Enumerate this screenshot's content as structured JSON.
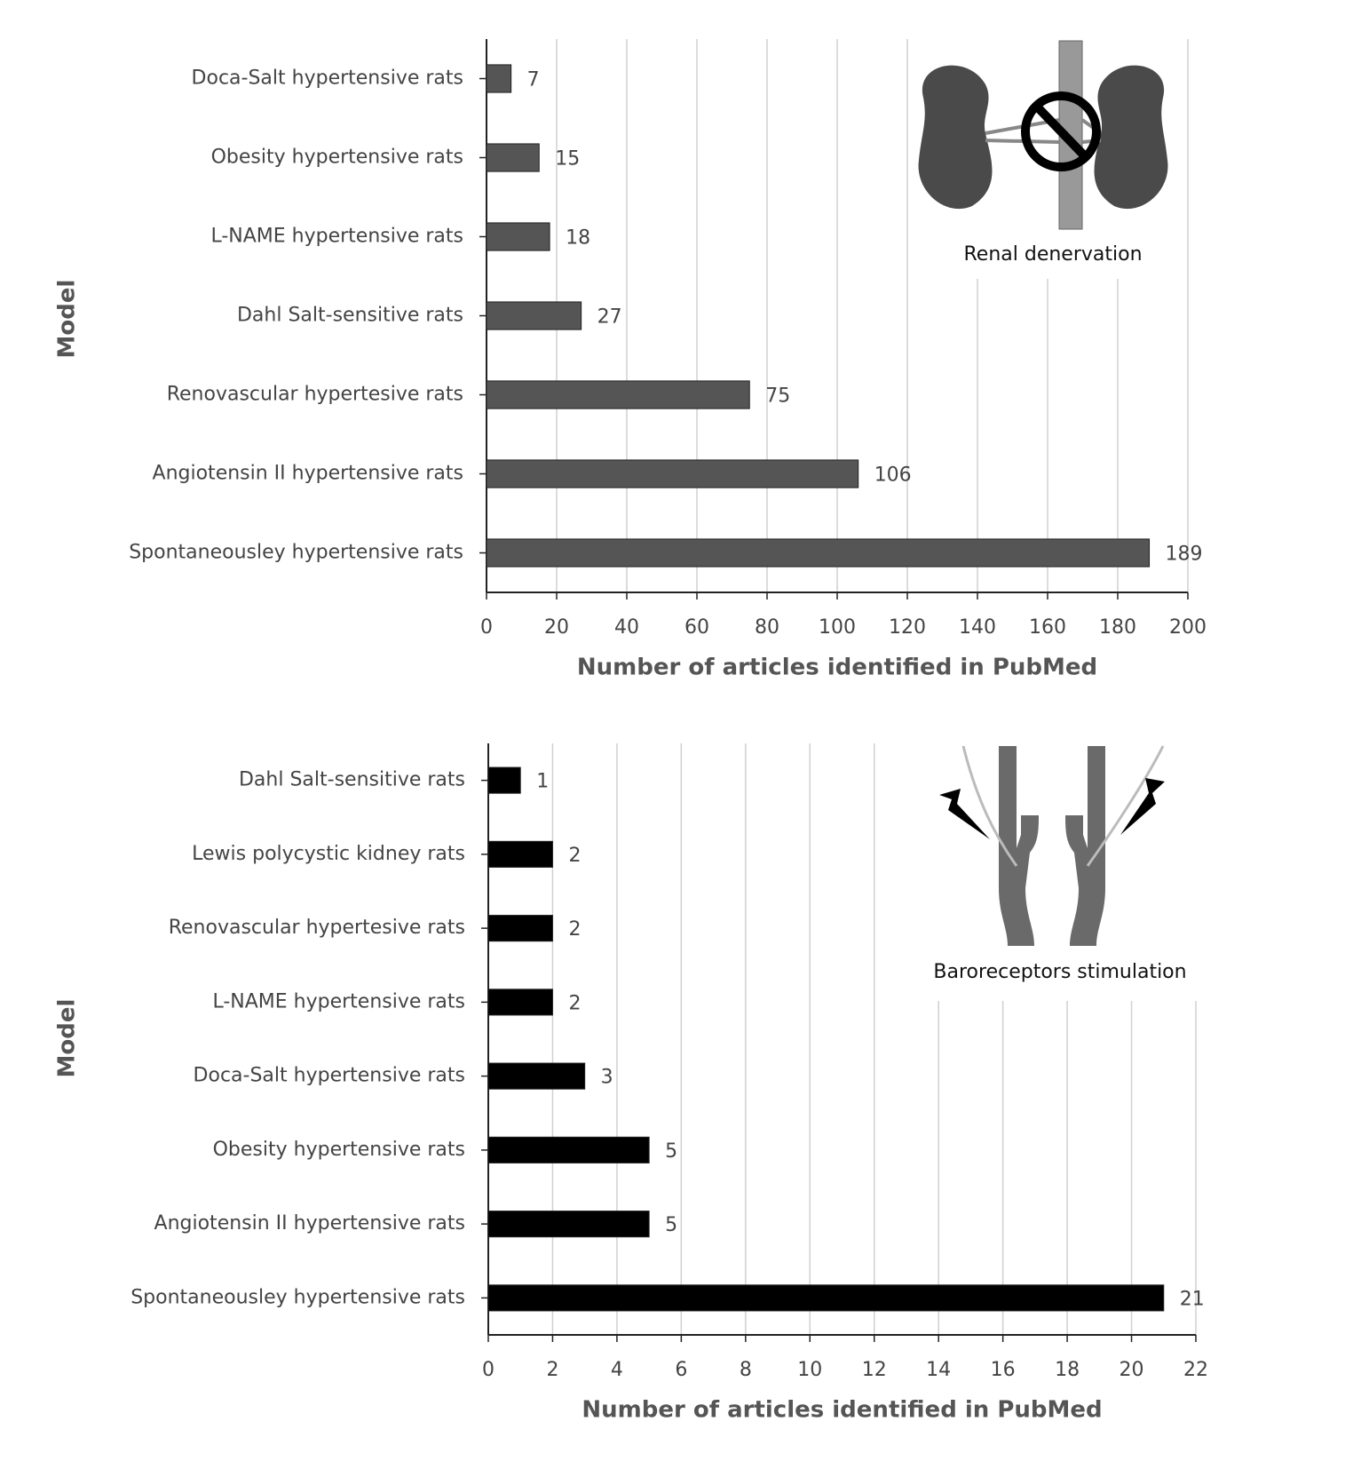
{
  "chart_data": [
    {
      "type": "bar",
      "orientation": "horizontal",
      "categories": [
        "Doca-Salt hypertensive rats",
        "Obesity hypertensive rats",
        "L-NAME hypertensive rats",
        "Dahl Salt-sensitive rats",
        "Renovascular hypertesive rats",
        "Angiotensin II hypertensive rats",
        "Spontaneousley hypertensive rats"
      ],
      "values": [
        7,
        15,
        18,
        27,
        75,
        106,
        189
      ],
      "color": "#555555",
      "xlim": [
        0,
        200
      ],
      "xticks": [
        0,
        20,
        40,
        60,
        80,
        100,
        120,
        140,
        160,
        180,
        200
      ],
      "grid": true,
      "x_label": "Number of articles identified in PubMed",
      "y_label": "Model",
      "annotation": "Renal denervation"
    },
    {
      "type": "bar",
      "orientation": "horizontal",
      "categories": [
        "Dahl Salt-sensitive rats",
        "Lewis polycystic kidney rats",
        "Renovascular hypertesive rats",
        "L-NAME hypertensive rats",
        "Doca-Salt hypertensive rats",
        "Obesity hypertensive rats",
        "Angiotensin II hypertensive rats",
        "Spontaneousley hypertensive rats"
      ],
      "values": [
        1,
        2,
        2,
        2,
        3,
        5,
        5,
        21
      ],
      "color": "#000000",
      "xlim": [
        0,
        22
      ],
      "xticks": [
        0,
        2,
        4,
        6,
        8,
        10,
        12,
        14,
        16,
        18,
        20,
        22
      ],
      "grid": true,
      "x_label": "Number of articles identified in PubMed",
      "y_label": "Model",
      "annotation": "Baroreceptors stimulation"
    }
  ]
}
